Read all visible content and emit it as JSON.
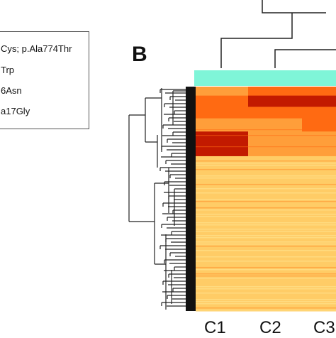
{
  "legend": {
    "lines": [
      "Cys; p.Ala774Thr",
      "Trp",
      "6Asn",
      "a17Gly"
    ]
  },
  "panel_label": "B",
  "chart_data": {
    "type": "heatmap",
    "columns": [
      "C1",
      "C2",
      "C3"
    ],
    "column_group_color": "#7ff5d8",
    "colors": {
      "high": "#c21a00",
      "mid_high": "#ff6a12",
      "mid": "#ff9e3a",
      "low": "#ffcc66",
      "lowest": "#ffe08a"
    },
    "row_bands": [
      {
        "rows": [
          0,
          0.04
        ],
        "C1": "mid",
        "C2": "mid_high",
        "C3": "mid_high"
      },
      {
        "rows": [
          0.04,
          0.09
        ],
        "C1": "mid_high",
        "C2": "high",
        "C3": "high"
      },
      {
        "rows": [
          0.09,
          0.14
        ],
        "C1": "mid_high",
        "C2": "mid_high",
        "C3": "mid_high"
      },
      {
        "rows": [
          0.14,
          0.2
        ],
        "C1": "mid",
        "C2": "mid",
        "C3": "mid_high"
      },
      {
        "rows": [
          0.2,
          0.31
        ],
        "C1": "high",
        "C2": "mid",
        "C3": "mid"
      },
      {
        "rows": [
          0.31,
          1.0
        ],
        "C1": "low",
        "C2": "low",
        "C3": "low"
      }
    ],
    "title": "",
    "xlabel": "",
    "ylabel": ""
  }
}
